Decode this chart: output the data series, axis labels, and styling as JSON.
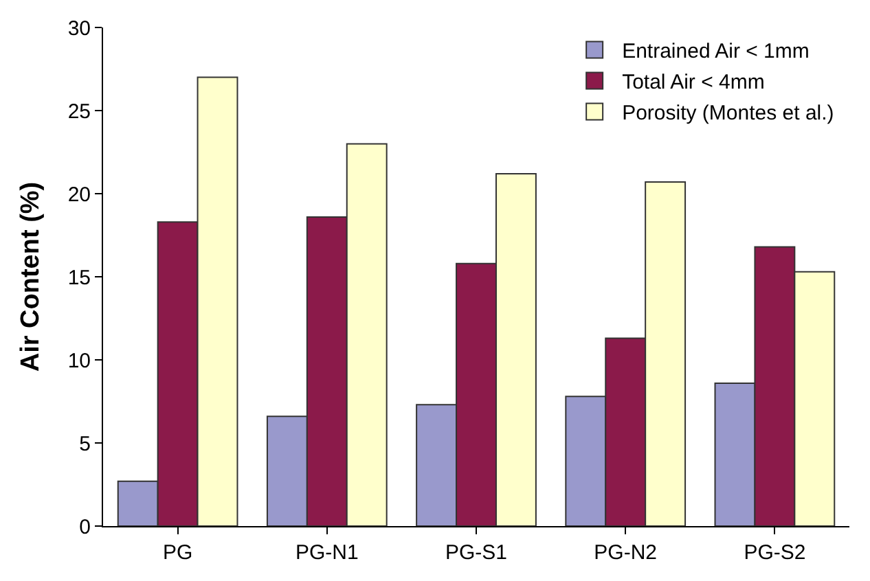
{
  "chart_data": {
    "type": "bar",
    "ylabel": "Air Content (%)",
    "categories": [
      "PG",
      "PG-N1",
      "PG-S1",
      "PG-N2",
      "PG-S2"
    ],
    "series": [
      {
        "name": "Entrained Air < 1mm",
        "color": "#9999cc",
        "values": [
          2.7,
          6.6,
          7.3,
          7.8,
          8.6
        ]
      },
      {
        "name": "Total Air < 4mm",
        "color": "#8b1a4a",
        "values": [
          18.3,
          18.6,
          15.8,
          11.3,
          16.8
        ]
      },
      {
        "name": "Porosity (Montes et al.)",
        "color": "#ffffcc",
        "values": [
          27.0,
          23.0,
          21.2,
          20.7,
          15.3
        ]
      }
    ],
    "ylim": [
      0,
      30
    ],
    "yticks": [
      0,
      5,
      10,
      15,
      20,
      25,
      30
    ],
    "legend": "top right"
  }
}
